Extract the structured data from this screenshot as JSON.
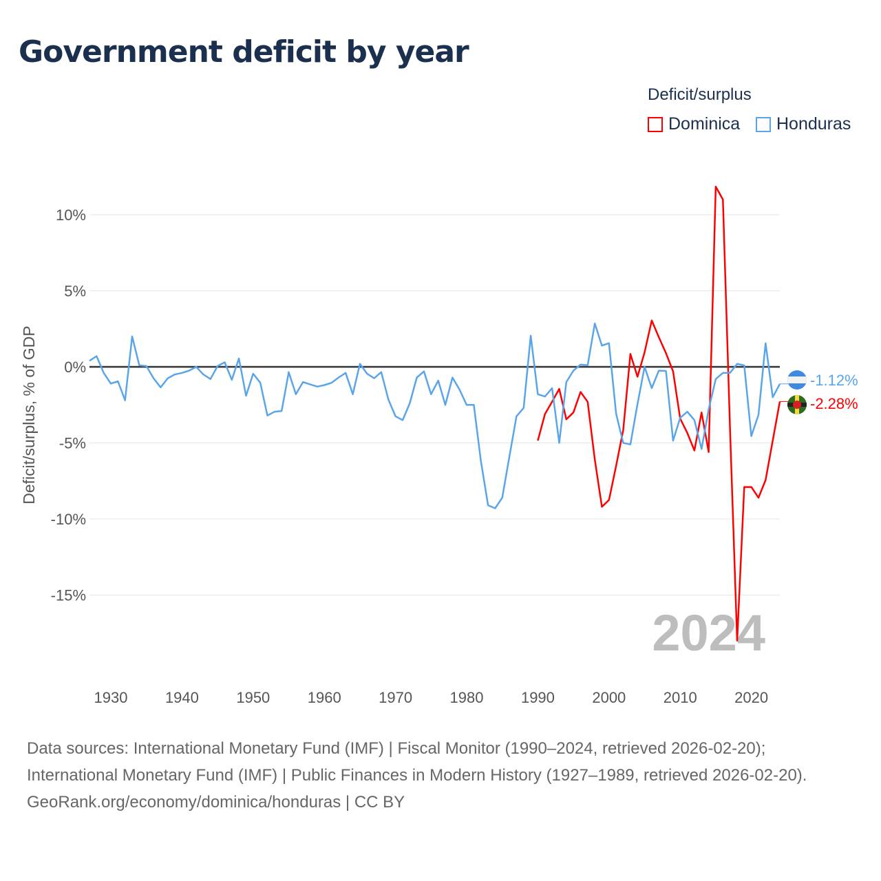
{
  "title": "Government deficit by year",
  "legend": {
    "title": "Deficit/surplus",
    "items": [
      {
        "name": "Dominica",
        "color": "#ff0000"
      },
      {
        "name": "Honduras",
        "color": "#5aa5ea"
      }
    ]
  },
  "current_year": "2024",
  "end_labels": {
    "honduras": "-1.12%",
    "dominica": "-2.28%"
  },
  "sources": {
    "line1": "Data sources: International Monetary Fund (IMF) | Fiscal Monitor (1990–2024, retrieved 2026-02-20);",
    "line2": "International Monetary Fund (IMF) | Public Finances in Modern History (1927–1989, retrieved 2026-02-20).",
    "line3": "GeoRank.org/economy/dominica/honduras | CC BY"
  },
  "chart_data": {
    "type": "line",
    "title": "Government deficit by year",
    "xlabel": "",
    "ylabel": "Deficit/surplus, % of GDP",
    "xlim": [
      1927,
      2024
    ],
    "ylim": [
      -19,
      12
    ],
    "xticks": [
      1930,
      1940,
      1950,
      1960,
      1970,
      1980,
      1990,
      2000,
      2010,
      2020
    ],
    "yticks": [
      {
        "v": 10,
        "label": "10%"
      },
      {
        "v": 5,
        "label": "5%"
      },
      {
        "v": 0,
        "label": "0%"
      },
      {
        "v": -5,
        "label": "-5%"
      },
      {
        "v": -10,
        "label": "-10%"
      },
      {
        "v": -15,
        "label": "-15%"
      }
    ],
    "grid": true,
    "legend_position": "top-right",
    "series": [
      {
        "name": "Honduras",
        "color": "#5aa5ea",
        "start": 1927,
        "values": [
          0.4,
          0.7,
          -0.4,
          -1.1,
          -0.95,
          -2.2,
          2.0,
          0.1,
          0.05,
          -0.75,
          -1.35,
          -0.75,
          -0.5,
          -0.4,
          -0.25,
          0,
          -0.5,
          -0.8,
          0.05,
          0.3,
          -0.85,
          0.55,
          -1.9,
          -0.45,
          -1.05,
          -3.2,
          -2.95,
          -2.9,
          -0.35,
          -1.8,
          -1.0,
          -1.15,
          -1.3,
          -1.2,
          -1.05,
          -0.7,
          -0.4,
          -1.8,
          0.2,
          -0.45,
          -0.75,
          -0.35,
          -2.15,
          -3.25,
          -3.5,
          -2.4,
          -0.7,
          -0.3,
          -1.8,
          -0.9,
          -2.5,
          -0.7,
          -1.5,
          -2.5,
          -2.5,
          -6.2,
          -9.1,
          -9.3,
          -8.6,
          -5.9,
          -3.25,
          -2.7,
          2.05,
          -1.8,
          -1.95,
          -1.4,
          -5.0,
          -1.0,
          -0.25,
          0.15,
          0.1,
          2.85,
          1.4,
          1.55,
          -3.1,
          -5.0,
          -5.1,
          -2.45,
          0,
          -1.4,
          -0.25,
          -0.27,
          -4.85,
          -3.35,
          -2.95,
          -3.5,
          -5.4,
          -2.8,
          -0.8,
          -0.4,
          -0.4,
          0.2,
          0.1,
          -4.55,
          -3.15,
          1.55,
          -2.0,
          -1.12
        ]
      },
      {
        "name": "Dominica",
        "color": "#ff0000",
        "start": 1990,
        "values": [
          -4.85,
          -3.1,
          -2.3,
          -1.45,
          -3.45,
          -3.0,
          -1.65,
          -2.3,
          -6.1,
          -9.2,
          -8.75,
          -6.5,
          -4.15,
          0.85,
          -0.65,
          0.95,
          3.05,
          1.95,
          0.9,
          -0.3,
          -3.4,
          -4.35,
          -5.5,
          -3.0,
          -5.6,
          11.85,
          11.0,
          -4.0,
          -18.0,
          -7.9,
          -7.9,
          -8.6,
          -7.45,
          -4.85,
          -2.28
        ]
      }
    ]
  }
}
